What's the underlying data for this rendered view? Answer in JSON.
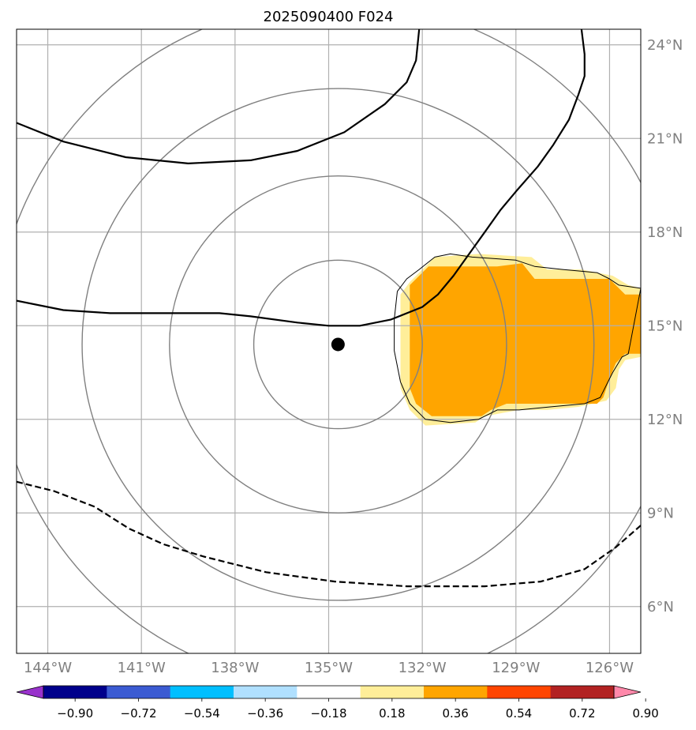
{
  "map": {
    "title": "2025090400 F024",
    "lon_range": [
      -145,
      -125
    ],
    "lat_range": [
      4.5,
      24.5
    ],
    "x_ticks": [
      {
        "lon": -144,
        "label": "144°W"
      },
      {
        "lon": -141,
        "label": "141°W"
      },
      {
        "lon": -138,
        "label": "138°W"
      },
      {
        "lon": -135,
        "label": "135°W"
      },
      {
        "lon": -132,
        "label": "132°W"
      },
      {
        "lon": -129,
        "label": "129°W"
      },
      {
        "lon": -126,
        "label": "126°W"
      }
    ],
    "y_ticks": [
      {
        "lat": 24,
        "label": "24°N"
      },
      {
        "lat": 21,
        "label": "21°N"
      },
      {
        "lat": 18,
        "label": "18°N"
      },
      {
        "lat": 15,
        "label": "15°N"
      },
      {
        "lat": 12,
        "label": "12°N"
      },
      {
        "lat": 9,
        "label": "9°N"
      },
      {
        "lat": 6,
        "label": "6°N"
      }
    ],
    "grid": true,
    "center": {
      "lon": -134.7,
      "lat": 14.4
    },
    "range_rings_deg": [
      2.7,
      5.4,
      8.2,
      11.0
    ],
    "colors": {
      "ring": "#808080",
      "grid": "#b0b0b0",
      "contour": "#000000",
      "fill_light": "#ffee99",
      "fill_orange": "#ffa500"
    },
    "filled_regions": [
      {
        "name": "fill-level-0.18",
        "color": "#ffee99",
        "polygon": [
          [
            -132.4,
            16.4
          ],
          [
            -132.1,
            16.7
          ],
          [
            -131.6,
            17.2
          ],
          [
            -130.2,
            17.3
          ],
          [
            -128.5,
            17.2
          ],
          [
            -128.0,
            16.8
          ],
          [
            -126.9,
            16.8
          ],
          [
            -125.9,
            16.6
          ],
          [
            -125.4,
            16.3
          ],
          [
            -125.0,
            16.2
          ],
          [
            -125.0,
            14.0
          ],
          [
            -125.5,
            13.9
          ],
          [
            -125.7,
            13.6
          ],
          [
            -125.8,
            13.0
          ],
          [
            -126.1,
            12.6
          ],
          [
            -127.0,
            12.4
          ],
          [
            -128.0,
            12.3
          ],
          [
            -128.9,
            12.3
          ],
          [
            -130.0,
            12.1
          ],
          [
            -130.3,
            11.9
          ],
          [
            -131.9,
            11.8
          ],
          [
            -132.4,
            12.3
          ],
          [
            -132.7,
            13.0
          ],
          [
            -132.7,
            16.0
          ]
        ]
      },
      {
        "name": "fill-level-0.36",
        "color": "#ffa500",
        "polygon": [
          [
            -132.4,
            16.3
          ],
          [
            -131.8,
            16.9
          ],
          [
            -129.6,
            16.9
          ],
          [
            -128.8,
            17.0
          ],
          [
            -128.4,
            16.5
          ],
          [
            -126.0,
            16.5
          ],
          [
            -125.5,
            16.0
          ],
          [
            -125.0,
            16.0
          ],
          [
            -125.0,
            14.1
          ],
          [
            -125.5,
            14.1
          ],
          [
            -125.8,
            13.8
          ],
          [
            -126.0,
            13.3
          ],
          [
            -126.2,
            12.7
          ],
          [
            -126.4,
            12.5
          ],
          [
            -129.3,
            12.5
          ],
          [
            -129.8,
            12.3
          ],
          [
            -130.1,
            12.1
          ],
          [
            -131.7,
            12.1
          ],
          [
            -132.2,
            12.5
          ],
          [
            -132.4,
            13.0
          ]
        ]
      }
    ],
    "contours": [
      {
        "name": "thin-contour-0.18",
        "style": "thin",
        "points": [
          [
            -132.1,
            16.8
          ],
          [
            -131.6,
            17.2
          ],
          [
            -131.1,
            17.3
          ],
          [
            -130.4,
            17.2
          ],
          [
            -129.0,
            17.1
          ],
          [
            -128.4,
            16.9
          ],
          [
            -127.5,
            16.8
          ],
          [
            -126.4,
            16.7
          ],
          [
            -126.0,
            16.5
          ],
          [
            -125.7,
            16.3
          ],
          [
            -125.0,
            16.2
          ],
          [
            -125.4,
            14.1
          ],
          [
            -125.6,
            14.0
          ],
          [
            -125.9,
            13.5
          ],
          [
            -126.3,
            12.7
          ],
          [
            -126.8,
            12.5
          ],
          [
            -127.9,
            12.4
          ],
          [
            -128.9,
            12.3
          ],
          [
            -129.6,
            12.3
          ],
          [
            -130.2,
            12.0
          ],
          [
            -131.1,
            11.9
          ],
          [
            -131.9,
            12.0
          ],
          [
            -132.4,
            12.5
          ],
          [
            -132.7,
            13.2
          ],
          [
            -132.9,
            14.2
          ],
          [
            -132.9,
            15.2
          ],
          [
            -132.8,
            16.1
          ],
          [
            -132.5,
            16.5
          ],
          [
            -132.1,
            16.8
          ]
        ]
      },
      {
        "name": "thick-contour-upper",
        "style": "solid",
        "points": [
          [
            -145.0,
            21.5
          ],
          [
            -143.5,
            20.9
          ],
          [
            -141.5,
            20.4
          ],
          [
            -139.5,
            20.2
          ],
          [
            -137.5,
            20.3
          ],
          [
            -136.0,
            20.6
          ],
          [
            -134.5,
            21.2
          ],
          [
            -133.2,
            22.1
          ],
          [
            -132.5,
            22.8
          ],
          [
            -132.2,
            23.5
          ],
          [
            -132.1,
            24.5
          ]
        ]
      },
      {
        "name": "thick-contour-middle",
        "style": "solid",
        "points": [
          [
            -145.0,
            15.8
          ],
          [
            -143.5,
            15.5
          ],
          [
            -142.0,
            15.4
          ],
          [
            -140.0,
            15.4
          ],
          [
            -138.5,
            15.4
          ],
          [
            -137.5,
            15.3
          ],
          [
            -136.0,
            15.1
          ],
          [
            -135.0,
            15.0
          ],
          [
            -134.0,
            15.0
          ],
          [
            -133.0,
            15.2
          ],
          [
            -132.0,
            15.6
          ],
          [
            -131.5,
            16.0
          ],
          [
            -131.0,
            16.6
          ],
          [
            -130.5,
            17.3
          ],
          [
            -130.0,
            18.0
          ],
          [
            -129.5,
            18.7
          ],
          [
            -129.0,
            19.3
          ],
          [
            -128.3,
            20.1
          ],
          [
            -127.8,
            20.8
          ],
          [
            -127.3,
            21.6
          ],
          [
            -127.0,
            22.4
          ],
          [
            -126.8,
            23.0
          ],
          [
            -126.8,
            23.7
          ],
          [
            -126.9,
            24.5
          ]
        ]
      },
      {
        "name": "dashed-contour-lower",
        "style": "dashed",
        "points": [
          [
            -145.0,
            10.0
          ],
          [
            -143.8,
            9.7
          ],
          [
            -142.5,
            9.2
          ],
          [
            -141.4,
            8.5
          ],
          [
            -140.3,
            8.0
          ],
          [
            -139.0,
            7.6
          ],
          [
            -137.0,
            7.1
          ],
          [
            -134.8,
            6.8
          ],
          [
            -132.5,
            6.65
          ],
          [
            -130.0,
            6.65
          ],
          [
            -128.2,
            6.8
          ],
          [
            -126.8,
            7.2
          ],
          [
            -125.8,
            7.9
          ],
          [
            -125.0,
            8.6
          ]
        ]
      }
    ],
    "storm_marker": "storm-center-dot"
  },
  "colorbar": {
    "levels": [
      -0.9,
      -0.72,
      -0.54,
      -0.36,
      -0.18,
      0.18,
      0.36,
      0.54,
      0.72,
      0.9
    ],
    "tick_labels": [
      "−0.90",
      "−0.72",
      "−0.54",
      "−0.36",
      "−0.18",
      "0.18",
      "0.36",
      "0.54",
      "0.72",
      "0.90"
    ],
    "colors": [
      "#9932cc",
      "#00008b",
      "#3b5bd2",
      "#00bfff",
      "#b0e0ff",
      "#ffffff",
      "#ffee99",
      "#ffa500",
      "#ff4500",
      "#b22222",
      "#ff88aa"
    ],
    "extend": "both"
  }
}
